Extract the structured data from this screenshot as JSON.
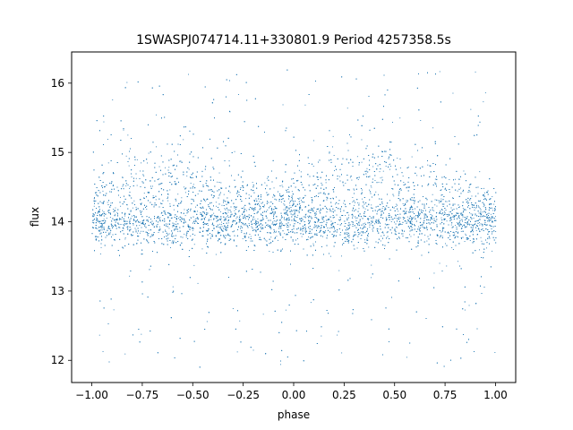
{
  "chart_data": {
    "type": "scatter",
    "title": "1SWASPJ074714.11+330801.9 Period 4257358.5s",
    "xlabel": "phase",
    "ylabel": "flux",
    "xlim": [
      -1.1,
      1.1
    ],
    "ylim": [
      11.68,
      16.45
    ],
    "xticks": [
      -1.0,
      -0.75,
      -0.5,
      -0.25,
      0.0,
      0.25,
      0.5,
      0.75,
      1.0
    ],
    "xtick_labels": [
      "−1.00",
      "−0.75",
      "−0.50",
      "−0.25",
      "0.00",
      "0.25",
      "0.50",
      "0.75",
      "1.00"
    ],
    "yticks": [
      12,
      13,
      14,
      15,
      16
    ],
    "ytick_labels": [
      "12",
      "13",
      "14",
      "15",
      "16"
    ],
    "grid": false,
    "legend": "none",
    "point_color": "#1f77b4",
    "description_of_distribution": {
      "x_range": [
        -1.0,
        1.0
      ],
      "main_band": [
        13.5,
        14.6
      ],
      "dense_core": 14.0,
      "sparse_range": [
        11.9,
        16.2
      ],
      "brighter_segments_centered_at": [
        -0.83,
        -0.55,
        -0.3,
        0.17,
        0.45,
        0.7
      ],
      "brighter_segment_level": 14.6,
      "total_points_approx": 30000
    },
    "series": [
      {
        "name": "",
        "x": [
          -1.0,
          -0.95,
          -0.9,
          -0.85,
          -0.8,
          -0.75,
          -0.7,
          -0.65,
          -0.6,
          -0.55,
          -0.5,
          -0.45,
          -0.4,
          -0.35,
          -0.3,
          -0.25,
          -0.2,
          -0.15,
          -0.1,
          -0.05,
          0.0,
          0.05,
          0.1,
          0.15,
          0.2,
          0.25,
          0.3,
          0.35,
          0.4,
          0.45,
          0.5,
          0.55,
          0.6,
          0.65,
          0.7,
          0.75,
          0.8,
          0.85,
          0.9,
          0.95,
          1.0
        ],
        "y_median": [
          14.0,
          14.1,
          14.2,
          14.3,
          14.4,
          14.1,
          14.2,
          14.3,
          14.4,
          14.5,
          14.3,
          14.1,
          14.2,
          14.1,
          14.3,
          14.0,
          14.0,
          14.0,
          14.0,
          14.0,
          14.0,
          14.1,
          14.2,
          14.3,
          14.4,
          14.1,
          14.2,
          14.3,
          14.4,
          14.5,
          14.3,
          14.1,
          14.2,
          14.1,
          14.3,
          14.0,
          14.0,
          14.0,
          14.0,
          14.0,
          14.0
        ]
      }
    ]
  }
}
